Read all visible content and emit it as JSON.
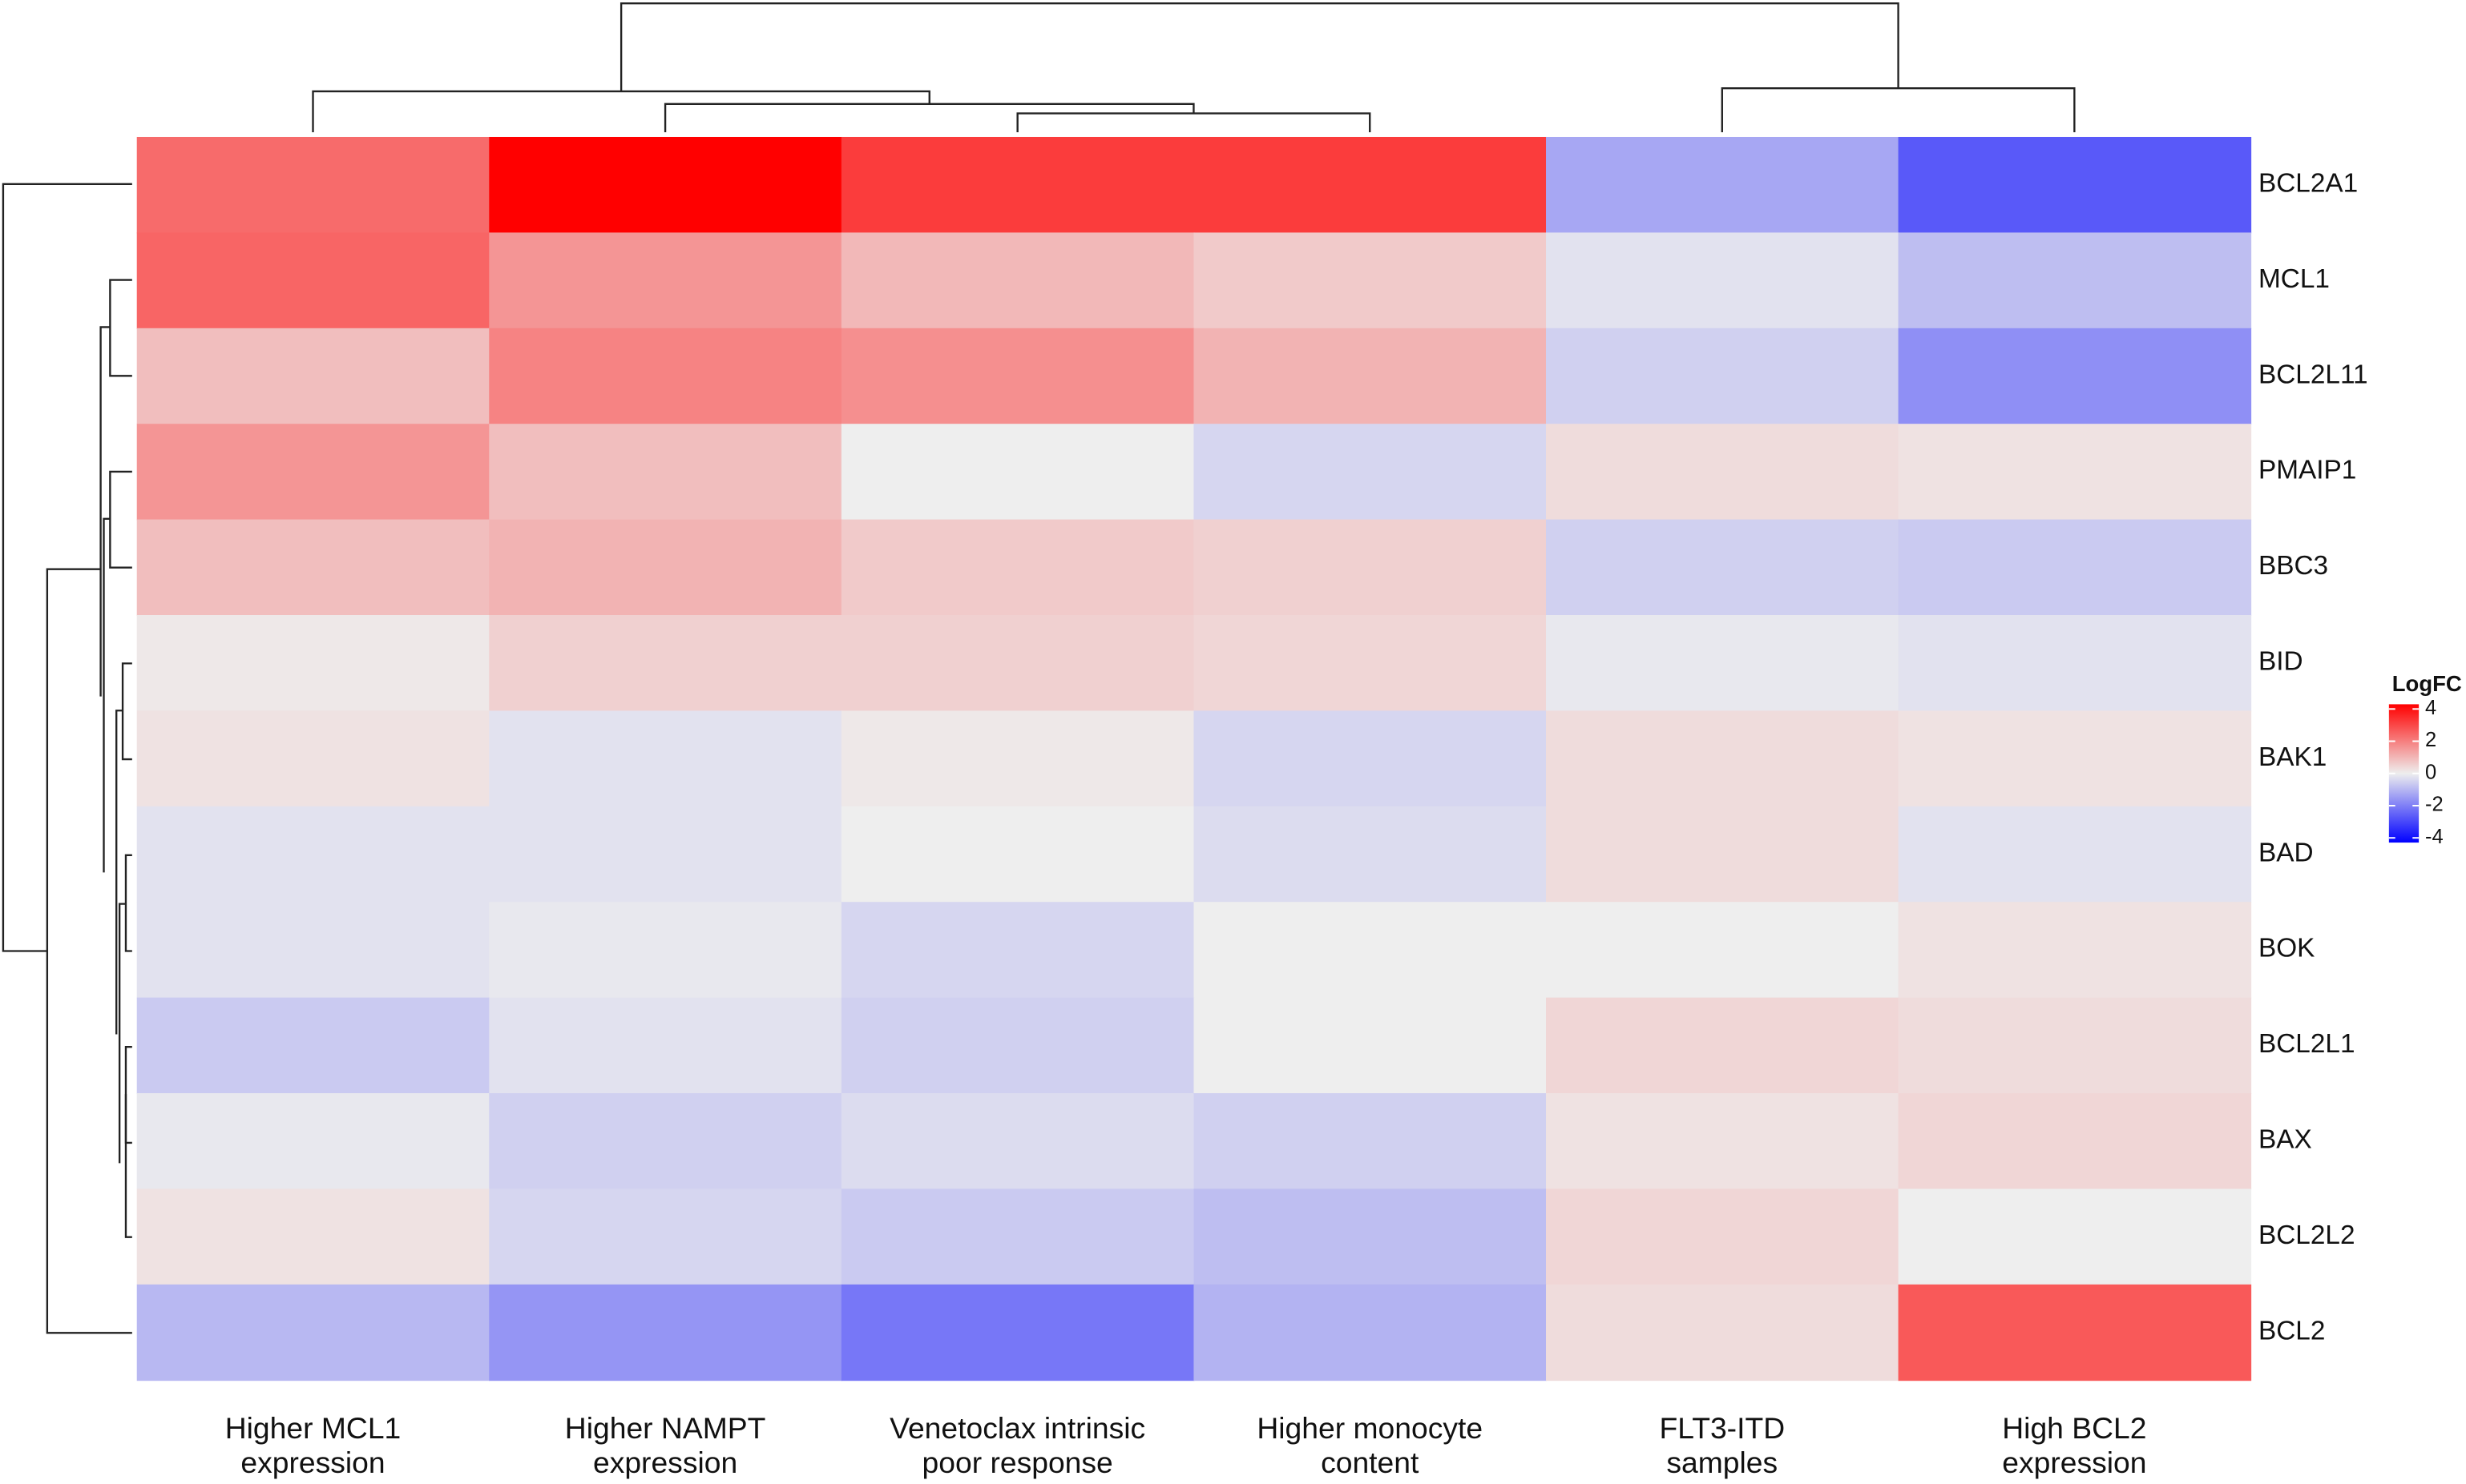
{
  "chart_data": {
    "type": "heatmap",
    "columns": [
      [
        "Higher MCL1",
        "expression"
      ],
      [
        "Higher NAMPT",
        "expression"
      ],
      [
        "Venetoclax intrinsic",
        "poor response"
      ],
      [
        "Higher monocyte",
        "content"
      ],
      [
        "FLT3-ITD",
        "samples"
      ],
      [
        "High BCL2",
        "expression"
      ]
    ],
    "rows": [
      "BCL2A1",
      "MCL1",
      "BCL2L11",
      "PMAIP1",
      "BBC3",
      "BID",
      "BAK1",
      "BAD",
      "BOK",
      "BCL2L1",
      "BAX",
      "BCL2L2",
      "BCL2"
    ],
    "values": [
      [
        2.2,
        4,
        3,
        3,
        -1.2,
        -2.5
      ],
      [
        2.3,
        1.5,
        0.9,
        0.6,
        -0.2,
        -0.8
      ],
      [
        0.8,
        1.8,
        1.6,
        1.0,
        -0.5,
        -1.6
      ],
      [
        1.5,
        0.8,
        0,
        -0.4,
        0.3,
        0.2
      ],
      [
        0.8,
        1.0,
        0.6,
        0.5,
        -0.5,
        -0.6
      ],
      [
        0.1,
        0.5,
        0.5,
        0.4,
        -0.1,
        -0.2
      ],
      [
        0.2,
        -0.2,
        0.1,
        -0.4,
        0.3,
        0.2
      ],
      [
        -0.2,
        -0.2,
        0,
        -0.3,
        0.3,
        -0.2
      ],
      [
        -0.2,
        -0.1,
        -0.4,
        0,
        0,
        0.2
      ],
      [
        -0.6,
        -0.2,
        -0.5,
        0,
        0.4,
        0.3
      ],
      [
        -0.1,
        -0.5,
        -0.3,
        -0.5,
        0.2,
        0.4
      ],
      [
        0.2,
        -0.4,
        -0.6,
        -0.8,
        0.4,
        0
      ],
      [
        -0.9,
        -1.5,
        -2.0,
        -1.0,
        0.3,
        2.5
      ]
    ],
    "legend_title": "LogFC",
    "clim": [
      -4,
      4
    ],
    "cticks": [
      4,
      2,
      0,
      -2,
      -4
    ],
    "colors": {
      "low": "#0000ff",
      "mid": "#eeeeee",
      "high": "#ff0000"
    }
  }
}
